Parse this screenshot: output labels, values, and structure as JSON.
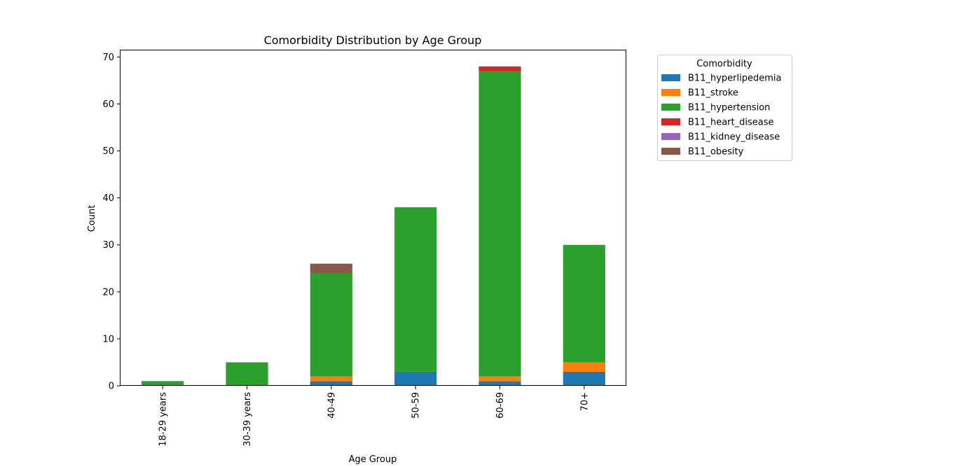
{
  "chart_data": {
    "type": "bar",
    "stacked": true,
    "title": "Comorbidity Distribution by Age Group",
    "xlabel": "Age Group",
    "ylabel": "Count",
    "ylim": [
      0,
      71.4
    ],
    "yticks": [
      0,
      10,
      20,
      30,
      40,
      50,
      60,
      70
    ],
    "categories": [
      "18-29 years",
      "30-39 years",
      "40-49",
      "50-59",
      "60-69",
      "70+"
    ],
    "legend": {
      "title": "Comorbidity",
      "placement": "outside-top-right"
    },
    "series": [
      {
        "name": "B11_hyperlipedemia",
        "color": "#1f77b4",
        "values": [
          0,
          0,
          1,
          3,
          1,
          3
        ]
      },
      {
        "name": "B11_stroke",
        "color": "#ff7f0e",
        "values": [
          0,
          0,
          1,
          0,
          1,
          2
        ]
      },
      {
        "name": "B11_hypertension",
        "color": "#2ca02c",
        "values": [
          1,
          5,
          22,
          35,
          65,
          25
        ]
      },
      {
        "name": "B11_heart_disease",
        "color": "#d62728",
        "values": [
          0,
          0,
          0,
          0,
          1,
          0
        ]
      },
      {
        "name": "B11_kidney_disease",
        "color": "#9467bd",
        "values": [
          0,
          0,
          0,
          0,
          0,
          0
        ]
      },
      {
        "name": "B11_obesity",
        "color": "#8c564b",
        "values": [
          0,
          0,
          2,
          0,
          0,
          0
        ]
      }
    ]
  }
}
